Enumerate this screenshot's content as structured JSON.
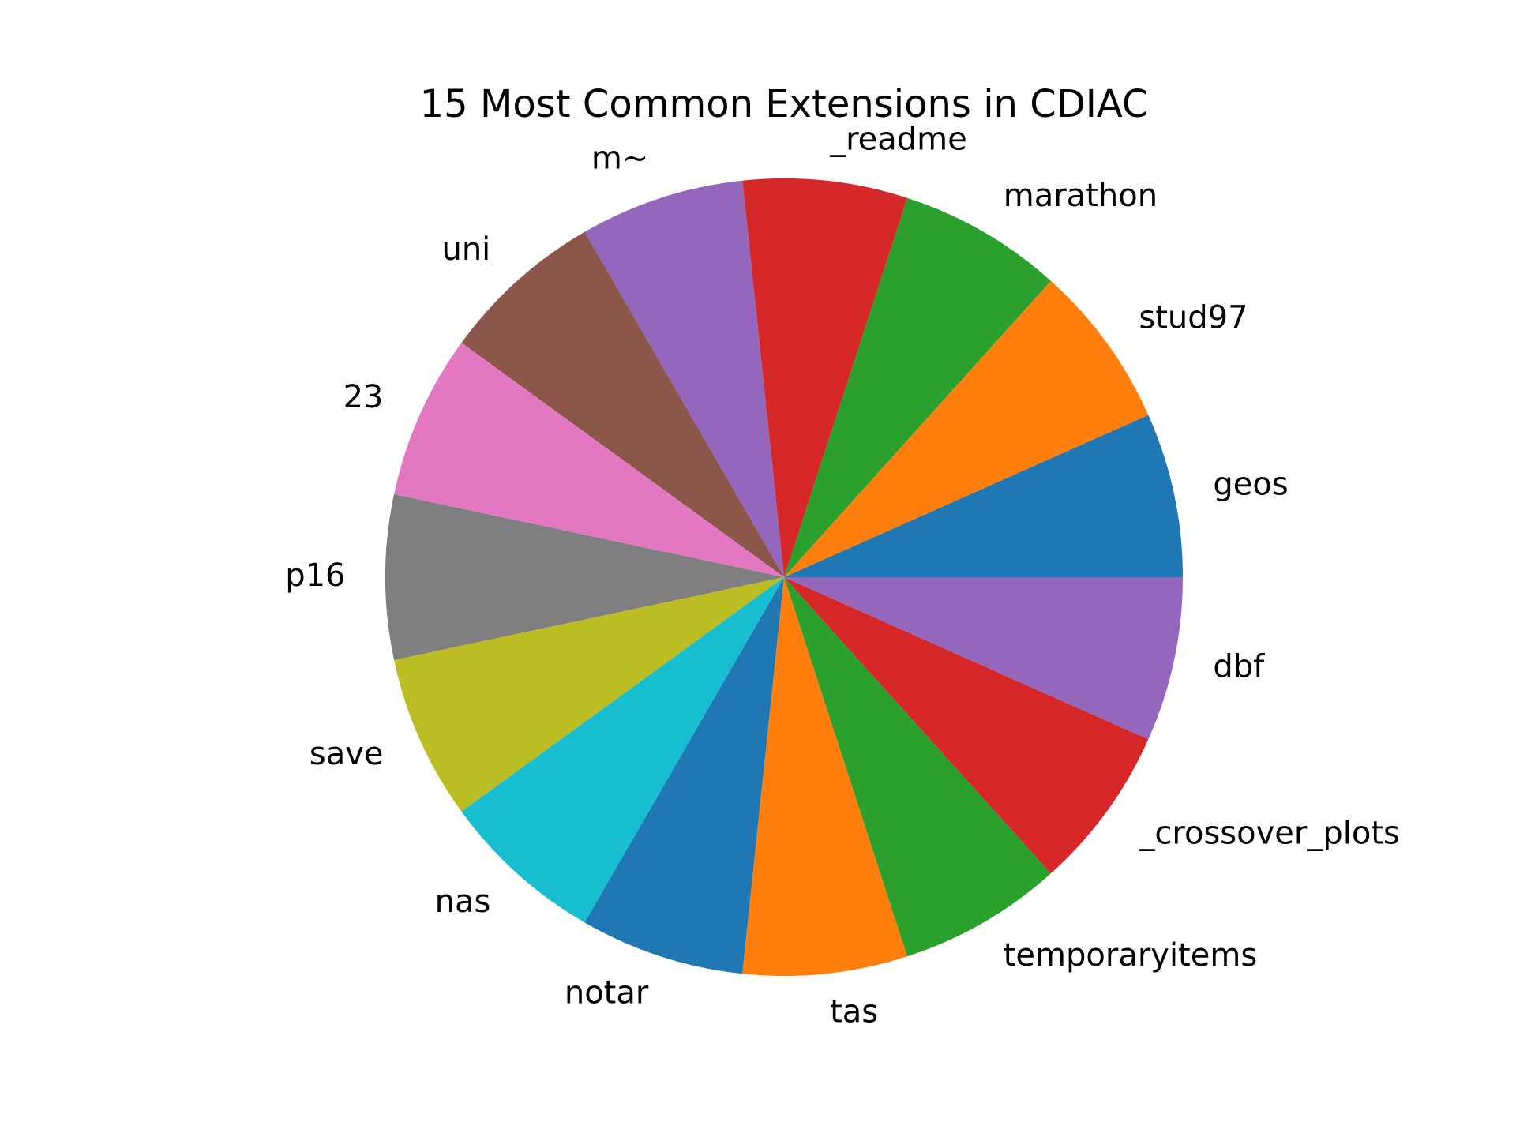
{
  "chart_data": {
    "type": "pie",
    "title": "15 Most Common Extensions in CDIAC",
    "start_angle_deg": 0,
    "direction": "counterclockwise",
    "slices": [
      {
        "label": "geos",
        "value": 1,
        "color": "#1f77b4"
      },
      {
        "label": "stud97",
        "value": 1,
        "color": "#ff7f0e"
      },
      {
        "label": "marathon",
        "value": 1,
        "color": "#2ca02c"
      },
      {
        "label": "_readme",
        "value": 1,
        "color": "#d62728"
      },
      {
        "label": "m~",
        "value": 1,
        "color": "#9467bd"
      },
      {
        "label": "uni",
        "value": 1,
        "color": "#8c564b"
      },
      {
        "label": "23",
        "value": 1,
        "color": "#e377c2"
      },
      {
        "label": "p16",
        "value": 1,
        "color": "#7f7f7f"
      },
      {
        "label": "save",
        "value": 1,
        "color": "#bcbd22"
      },
      {
        "label": "nas",
        "value": 1,
        "color": "#17becf"
      },
      {
        "label": "notar",
        "value": 1,
        "color": "#1f77b4"
      },
      {
        "label": "tas",
        "value": 1,
        "color": "#ff7f0e"
      },
      {
        "label": "temporaryitems",
        "value": 1,
        "color": "#2ca02c"
      },
      {
        "label": "_crossover_plots",
        "value": 1,
        "color": "#d62728"
      },
      {
        "label": "dbf",
        "value": 1,
        "color": "#9467bd"
      }
    ]
  }
}
